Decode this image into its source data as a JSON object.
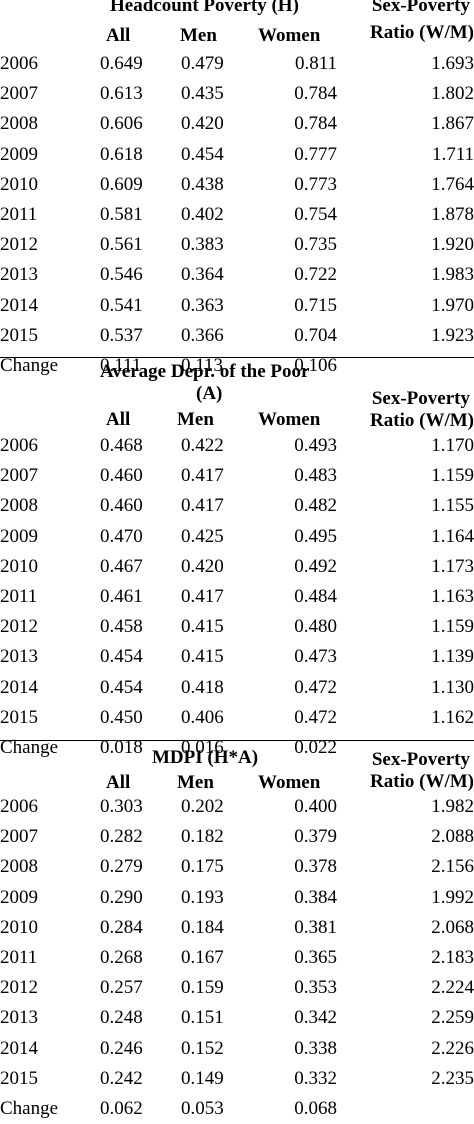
{
  "sections": [
    {
      "title_lines": [
        "Headcount Poverty (H)"
      ],
      "cols": [
        "All",
        "Men",
        "Women"
      ],
      "ratio_title": [
        "Sex-Poverty",
        "Ratio (W/M)"
      ],
      "rows": [
        {
          "year": "2006",
          "all": "0.649",
          "men": "0.479",
          "women": "0.811",
          "ratio": "1.693"
        },
        {
          "year": "2007",
          "all": "0.613",
          "men": "0.435",
          "women": "0.784",
          "ratio": "1.802"
        },
        {
          "year": "2008",
          "all": "0.606",
          "men": "0.420",
          "women": "0.784",
          "ratio": "1.867"
        },
        {
          "year": "2009",
          "all": "0.618",
          "men": "0.454",
          "women": "0.777",
          "ratio": "1.711"
        },
        {
          "year": "2010",
          "all": "0.609",
          "men": "0.438",
          "women": "0.773",
          "ratio": "1.764"
        },
        {
          "year": "2011",
          "all": "0.581",
          "men": "0.402",
          "women": "0.754",
          "ratio": "1.878"
        },
        {
          "year": "2012",
          "all": "0.561",
          "men": "0.383",
          "women": "0.735",
          "ratio": "1.920"
        },
        {
          "year": "2013",
          "all": "0.546",
          "men": "0.364",
          "women": "0.722",
          "ratio": "1.983"
        },
        {
          "year": "2014",
          "all": "0.541",
          "men": "0.363",
          "women": "0.715",
          "ratio": "1.970"
        },
        {
          "year": "2015",
          "all": "0.537",
          "men": "0.366",
          "women": "0.704",
          "ratio": "1.923"
        },
        {
          "year": "Change",
          "all": "0.111",
          "men": "0.113",
          "women": "0.106",
          "ratio": ""
        }
      ]
    },
    {
      "title_lines": [
        "Average Depr. of the Poor",
        "(A)"
      ],
      "cols": [
        "All",
        "Men",
        "Women"
      ],
      "ratio_title": [
        "Sex-Poverty",
        "Ratio (W/M)"
      ],
      "rows": [
        {
          "year": "2006",
          "all": "0.468",
          "men": "0.422",
          "women": "0.493",
          "ratio": "1.170"
        },
        {
          "year": "2007",
          "all": "0.460",
          "men": "0.417",
          "women": "0.483",
          "ratio": "1.159"
        },
        {
          "year": "2008",
          "all": "0.460",
          "men": "0.417",
          "women": "0.482",
          "ratio": "1.155"
        },
        {
          "year": "2009",
          "all": "0.470",
          "men": "0.425",
          "women": "0.495",
          "ratio": "1.164"
        },
        {
          "year": "2010",
          "all": "0.467",
          "men": "0.420",
          "women": "0.492",
          "ratio": "1.173"
        },
        {
          "year": "2011",
          "all": "0.461",
          "men": "0.417",
          "women": "0.484",
          "ratio": "1.163"
        },
        {
          "year": "2012",
          "all": "0.458",
          "men": "0.415",
          "women": "0.480",
          "ratio": "1.159"
        },
        {
          "year": "2013",
          "all": "0.454",
          "men": "0.415",
          "women": "0.473",
          "ratio": "1.139"
        },
        {
          "year": "2014",
          "all": "0.454",
          "men": "0.418",
          "women": "0.472",
          "ratio": "1.130"
        },
        {
          "year": "2015",
          "all": "0.450",
          "men": "0.406",
          "women": "0.472",
          "ratio": "1.162"
        },
        {
          "year": "Change",
          "all": "0.018",
          "men": "0.016",
          "women": "0.022",
          "ratio": ""
        }
      ]
    },
    {
      "title_lines": [
        "MDPI (H*A)"
      ],
      "cols": [
        "All",
        "Men",
        "Women"
      ],
      "ratio_title": [
        "Sex-Poverty",
        "Ratio (W/M)"
      ],
      "rows": [
        {
          "year": "2006",
          "all": "0.303",
          "men": "0.202",
          "women": "0.400",
          "ratio": "1.982"
        },
        {
          "year": "2007",
          "all": "0.282",
          "men": "0.182",
          "women": "0.379",
          "ratio": "2.088"
        },
        {
          "year": "2008",
          "all": "0.279",
          "men": "0.175",
          "women": "0.378",
          "ratio": "2.156"
        },
        {
          "year": "2009",
          "all": "0.290",
          "men": "0.193",
          "women": "0.384",
          "ratio": "1.992"
        },
        {
          "year": "2010",
          "all": "0.284",
          "men": "0.184",
          "women": "0.381",
          "ratio": "2.068"
        },
        {
          "year": "2011",
          "all": "0.268",
          "men": "0.167",
          "women": "0.365",
          "ratio": "2.183"
        },
        {
          "year": "2012",
          "all": "0.257",
          "men": "0.159",
          "women": "0.353",
          "ratio": "2.224"
        },
        {
          "year": "2013",
          "all": "0.248",
          "men": "0.151",
          "women": "0.342",
          "ratio": "2.259"
        },
        {
          "year": "2014",
          "all": "0.246",
          "men": "0.152",
          "women": "0.338",
          "ratio": "2.226"
        },
        {
          "year": "2015",
          "all": "0.242",
          "men": "0.149",
          "women": "0.332",
          "ratio": "2.235"
        },
        {
          "year": "Change",
          "all": "0.062",
          "men": "0.053",
          "women": "0.068",
          "ratio": ""
        }
      ]
    }
  ]
}
